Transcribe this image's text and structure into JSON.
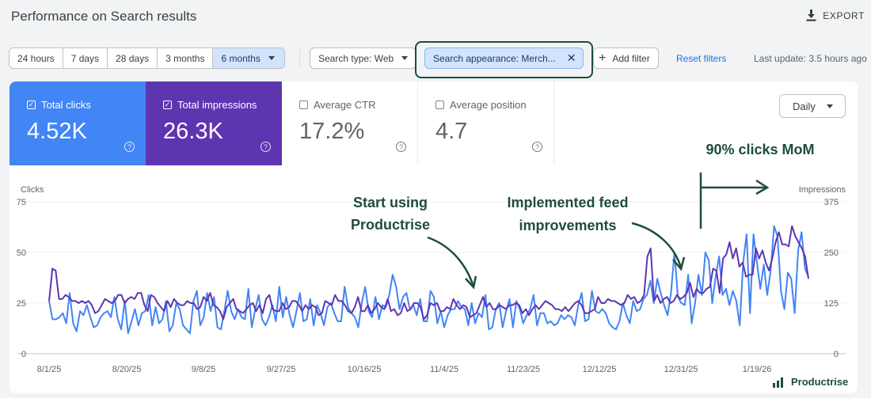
{
  "header": {
    "title": "Performance on Search results",
    "export_label": "EXPORT"
  },
  "date_ranges": [
    "24 hours",
    "7 days",
    "28 days",
    "3 months",
    "6 months"
  ],
  "active_range": "6 months",
  "filters": {
    "search_type": "Search type: Web",
    "appearance": "Search appearance: Merch...",
    "add_filter": "Add filter",
    "reset": "Reset filters",
    "last_update": "Last update: 3.5 hours ago"
  },
  "metrics": {
    "clicks": {
      "label": "Total clicks",
      "value": "4.52K"
    },
    "impressions": {
      "label": "Total impressions",
      "value": "26.3K"
    },
    "ctr": {
      "label": "Average CTR",
      "value": "17.2%"
    },
    "position": {
      "label": "Average position",
      "value": "4.7"
    }
  },
  "granularity": "Daily",
  "annotations": {
    "start": [
      "Start using",
      "Productrise"
    ],
    "feed": [
      "Implemented feed",
      "improvements"
    ],
    "mom": "90% clicks MoM"
  },
  "brand": "Productrise",
  "colors": {
    "clicks": "#4285f4",
    "impressions": "#5e35b1",
    "annotation": "#1e4d3c"
  },
  "chart_data": {
    "type": "line",
    "left_axis_label": "Clicks",
    "right_axis_label": "Impressions",
    "left_ticks": [
      "75",
      "50",
      "25",
      "0"
    ],
    "right_ticks": [
      "375",
      "250",
      "125",
      "0"
    ],
    "ylim_left": [
      0,
      75
    ],
    "ylim_right": [
      0,
      375
    ],
    "x_ticks": [
      "8/1/25",
      "8/20/25",
      "9/8/25",
      "9/27/25",
      "10/16/25",
      "11/4/25",
      "11/23/25",
      "12/12/25",
      "12/31/25",
      "1/19/26"
    ],
    "series": [
      {
        "name": "Clicks",
        "values": [
          26,
          17,
          17,
          18,
          20,
          15,
          30,
          15,
          11,
          21,
          19,
          24,
          18,
          13,
          14,
          18,
          20,
          21,
          18,
          28,
          17,
          12,
          26,
          10,
          16,
          22,
          14,
          20,
          21,
          29,
          14,
          23,
          15,
          17,
          26,
          11,
          14,
          25,
          22,
          14,
          12,
          10,
          26,
          31,
          14,
          18,
          30,
          21,
          28,
          13,
          12,
          21,
          31,
          21,
          17,
          22,
          18,
          17,
          32,
          13,
          22,
          29,
          17,
          14,
          18,
          24,
          16,
          33,
          18,
          28,
          19,
          13,
          21,
          30,
          16,
          17,
          27,
          14,
          24,
          20,
          14,
          23,
          25,
          20,
          16,
          16,
          33,
          23,
          20,
          18,
          13,
          25,
          33,
          21,
          18,
          28,
          17,
          24,
          23,
          29,
          39,
          33,
          22,
          28,
          30,
          22,
          24,
          19,
          27,
          16,
          16,
          31,
          28,
          15,
          21,
          13,
          19,
          22,
          22,
          26,
          23,
          22,
          14,
          25,
          15,
          20,
          18,
          29,
          12,
          13,
          22,
          25,
          13,
          21,
          27,
          13,
          26,
          22,
          15,
          19,
          22,
          29,
          14,
          20,
          20,
          15,
          16,
          14,
          15,
          19,
          17,
          19,
          18,
          14,
          24,
          30,
          16,
          17,
          31,
          21,
          20,
          22,
          20,
          15,
          13,
          12,
          16,
          25,
          19,
          15,
          26,
          21,
          22,
          27,
          29,
          36,
          25,
          37,
          30,
          24,
          19,
          30,
          50,
          28,
          25,
          24,
          39,
          15,
          25,
          39,
          29,
          50,
          46,
          25,
          38,
          48,
          29,
          32,
          24,
          31,
          26,
          14,
          45,
          59,
          20,
          59,
          45,
          32,
          44,
          29,
          41,
          63,
          58,
          31,
          22,
          40,
          37,
          20,
          51,
          60,
          42,
          38
        ]
      },
      {
        "name": "Impressions",
        "values": [
          26,
          42,
          41,
          27,
          27,
          29,
          28,
          26,
          26,
          25,
          26,
          25,
          26,
          24,
          20,
          21,
          24,
          27,
          26,
          25,
          26,
          29,
          29,
          25,
          27,
          28,
          27,
          30,
          30,
          24,
          21,
          29,
          28,
          25,
          23,
          21,
          26,
          23,
          27,
          25,
          24,
          24,
          26,
          25,
          25,
          22,
          23,
          28,
          26,
          30,
          24,
          23,
          21,
          17,
          23,
          25,
          27,
          22,
          21,
          20,
          22,
          24,
          25,
          21,
          24,
          20,
          27,
          29,
          22,
          21,
          21,
          25,
          22,
          23,
          26,
          26,
          24,
          21,
          24,
          22,
          24,
          23,
          19,
          20,
          26,
          25,
          24,
          29,
          26,
          26,
          24,
          21,
          20,
          23,
          28,
          21,
          21,
          24,
          20,
          22,
          25,
          23,
          22,
          27,
          21,
          22,
          19,
          20,
          25,
          21,
          22,
          25,
          25,
          23,
          17,
          19,
          25,
          24,
          25,
          21,
          21,
          23,
          22,
          27,
          24,
          22,
          24,
          23,
          18,
          19,
          20,
          24,
          28,
          23,
          25,
          22,
          22,
          24,
          23,
          22,
          24,
          24,
          25,
          24,
          20,
          22,
          19,
          22,
          24,
          22,
          24,
          26,
          25,
          24,
          22,
          22,
          21,
          23,
          21,
          23,
          25,
          26,
          24,
          20,
          20,
          21,
          22,
          28,
          25,
          25,
          27,
          26,
          26,
          25,
          24,
          25,
          29,
          27,
          28,
          25,
          26,
          29,
          48,
          52,
          26,
          29,
          25,
          27,
          28,
          25,
          26,
          29,
          27,
          28,
          30,
          35,
          28,
          32,
          30,
          30,
          32,
          33,
          42,
          41,
          30,
          47,
          49,
          55,
          47,
          52,
          43,
          45,
          38,
          39,
          39,
          52,
          47,
          51,
          45,
          41,
          47,
          55,
          60,
          54,
          54,
          53,
          63,
          58,
          55,
          52,
          48,
          37
        ]
      }
    ]
  }
}
